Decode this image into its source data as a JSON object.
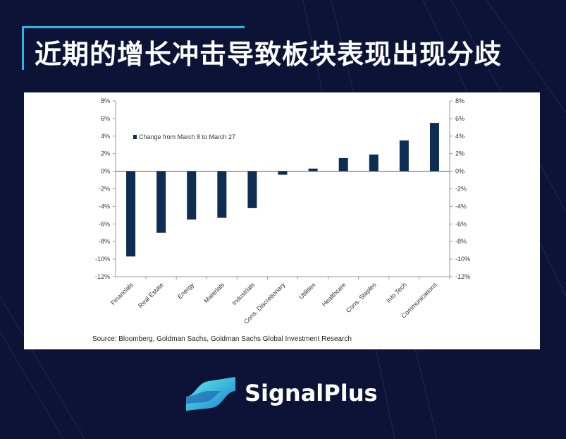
{
  "title": "近期的增长冲击导致板块表现出现分歧",
  "brand": {
    "name": "SignalPlus",
    "logo_icon": "signalplus-logo-icon"
  },
  "colors": {
    "background": "#0c1337",
    "accent": "#2ab7e0",
    "bar": "#0d2d52"
  },
  "chart_data": {
    "type": "bar",
    "categories": [
      "Financials",
      "Real Estate",
      "Energy",
      "Materials",
      "Industrials",
      "Cons. Discretionary",
      "Utilities",
      "Healthcare",
      "Cons. Staples",
      "Info Tech",
      "Communications"
    ],
    "series": [
      {
        "name": "Change from March 8 to March 27",
        "values": [
          -9.7,
          -7.0,
          -5.5,
          -5.3,
          -4.2,
          -0.4,
          0.3,
          1.5,
          1.9,
          3.5,
          5.5
        ]
      }
    ],
    "ylim": [
      -12,
      8
    ],
    "yticks": [
      "8%",
      "6%",
      "4%",
      "2%",
      "0%",
      "-2%",
      "-4%",
      "-6%",
      "-8%",
      "-10%",
      "-12%"
    ],
    "legend_position": "top-left",
    "grid": false,
    "source": "Source: Bloomberg, Goldman Sachs, Goldman Sachs Global Investment Research"
  }
}
